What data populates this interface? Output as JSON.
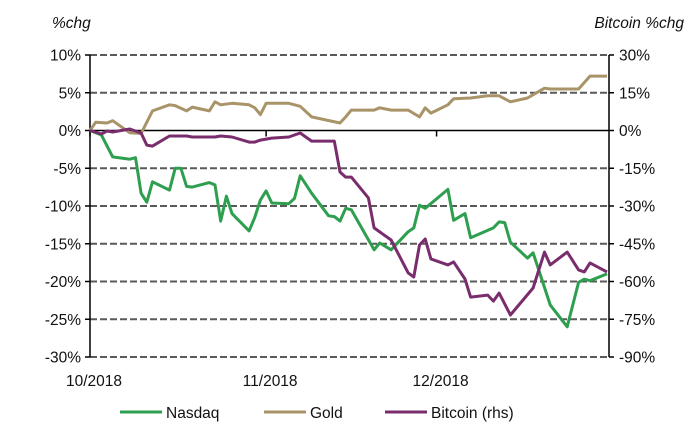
{
  "chart_data": {
    "type": "line",
    "title": "",
    "ylabel_left": "%chg",
    "ylabel_right": "Bitcoin %chg",
    "xlim": [
      "2018-10-01",
      "2018-12-31"
    ],
    "ylim_left": [
      -30,
      10
    ],
    "ylim_right": [
      -90,
      30
    ],
    "yticks_left": [
      "10%",
      "5%",
      "0%",
      "-5%",
      "-10%",
      "-15%",
      "-20%",
      "-25%",
      "-30%"
    ],
    "yticks_right": [
      "30%",
      "15%",
      "0%",
      "-15%",
      "-30%",
      "-45%",
      "-60%",
      "-75%",
      "-90%"
    ],
    "xticks": [
      {
        "date": "2018-10-01",
        "label": "10/2018"
      },
      {
        "date": "2018-11-01",
        "label": "11/2018"
      },
      {
        "date": "2018-12-01",
        "label": "12/2018"
      }
    ],
    "grid": "horizontal dashed",
    "legend_position": "bottom",
    "series": [
      {
        "name": "Nasdaq",
        "axis": "left",
        "color": "#2e9e4f",
        "points": [
          [
            "2018-10-01",
            0
          ],
          [
            "2018-10-03",
            -0.6
          ],
          [
            "2018-10-05",
            -3.5
          ],
          [
            "2018-10-08",
            -3.8
          ],
          [
            "2018-10-09",
            -3.6
          ],
          [
            "2018-10-10",
            -8.3
          ],
          [
            "2018-10-11",
            -9.5
          ],
          [
            "2018-10-12",
            -6.8
          ],
          [
            "2018-10-15",
            -7.9
          ],
          [
            "2018-10-16",
            -5.0
          ],
          [
            "2018-10-17",
            -5.0
          ],
          [
            "2018-10-18",
            -7.4
          ],
          [
            "2018-10-19",
            -7.5
          ],
          [
            "2018-10-22",
            -6.9
          ],
          [
            "2018-10-23",
            -7.2
          ],
          [
            "2018-10-24",
            -12.0
          ],
          [
            "2018-10-25",
            -8.7
          ],
          [
            "2018-10-26",
            -11.0
          ],
          [
            "2018-10-29",
            -13.3
          ],
          [
            "2018-10-30",
            -11.5
          ],
          [
            "2018-10-31",
            -9.2
          ],
          [
            "2018-11-01",
            -8.0
          ],
          [
            "2018-11-02",
            -9.6
          ],
          [
            "2018-11-05",
            -9.7
          ],
          [
            "2018-11-06",
            -9.0
          ],
          [
            "2018-11-07",
            -6.0
          ],
          [
            "2018-11-09",
            -8.3
          ],
          [
            "2018-11-12",
            -11.3
          ],
          [
            "2018-11-13",
            -11.4
          ],
          [
            "2018-11-14",
            -12.0
          ],
          [
            "2018-11-15",
            -10.3
          ],
          [
            "2018-11-16",
            -10.5
          ],
          [
            "2018-11-20",
            -15.8
          ],
          [
            "2018-11-21",
            -14.9
          ],
          [
            "2018-11-23",
            -15.8
          ],
          [
            "2018-11-26",
            -13.4
          ],
          [
            "2018-11-27",
            -12.9
          ],
          [
            "2018-11-28",
            -9.9
          ],
          [
            "2018-11-29",
            -10.3
          ],
          [
            "2018-12-03",
            -7.8
          ],
          [
            "2018-12-04",
            -11.9
          ],
          [
            "2018-12-06",
            -11.0
          ],
          [
            "2018-12-07",
            -14.2
          ],
          [
            "2018-12-11",
            -12.9
          ],
          [
            "2018-12-12",
            -12.1
          ],
          [
            "2018-12-13",
            -12.2
          ],
          [
            "2018-12-14",
            -14.8
          ],
          [
            "2018-12-17",
            -16.9
          ],
          [
            "2018-12-18",
            -16.2
          ],
          [
            "2018-12-21",
            -23.1
          ],
          [
            "2018-12-24",
            -26.0
          ],
          [
            "2018-12-26",
            -20.1
          ],
          [
            "2018-12-27",
            -19.7
          ],
          [
            "2018-12-28",
            -19.9
          ],
          [
            "2018-12-31",
            -19.0
          ]
        ]
      },
      {
        "name": "Gold",
        "axis": "left",
        "color": "#a89468",
        "points": [
          [
            "2018-10-01",
            0
          ],
          [
            "2018-10-02",
            1.1
          ],
          [
            "2018-10-04",
            1.0
          ],
          [
            "2018-10-05",
            1.3
          ],
          [
            "2018-10-08",
            -0.3
          ],
          [
            "2018-10-10",
            -0.4
          ],
          [
            "2018-10-12",
            2.6
          ],
          [
            "2018-10-15",
            3.4
          ],
          [
            "2018-10-16",
            3.3
          ],
          [
            "2018-10-18",
            2.6
          ],
          [
            "2018-10-19",
            3.1
          ],
          [
            "2018-10-22",
            2.6
          ],
          [
            "2018-10-23",
            3.8
          ],
          [
            "2018-10-24",
            3.4
          ],
          [
            "2018-10-26",
            3.6
          ],
          [
            "2018-10-29",
            3.4
          ],
          [
            "2018-10-30",
            3.0
          ],
          [
            "2018-10-31",
            2.1
          ],
          [
            "2018-11-01",
            3.6
          ],
          [
            "2018-11-05",
            3.6
          ],
          [
            "2018-11-07",
            3.2
          ],
          [
            "2018-11-09",
            1.8
          ],
          [
            "2018-11-14",
            1.0
          ],
          [
            "2018-11-15",
            1.8
          ],
          [
            "2018-11-16",
            2.7
          ],
          [
            "2018-11-20",
            2.7
          ],
          [
            "2018-11-21",
            3.0
          ],
          [
            "2018-11-23",
            2.7
          ],
          [
            "2018-11-26",
            2.7
          ],
          [
            "2018-11-28",
            1.8
          ],
          [
            "2018-11-29",
            3.0
          ],
          [
            "2018-11-30",
            2.3
          ],
          [
            "2018-12-03",
            3.4
          ],
          [
            "2018-12-04",
            4.2
          ],
          [
            "2018-12-07",
            4.3
          ],
          [
            "2018-12-10",
            4.6
          ],
          [
            "2018-12-12",
            4.6
          ],
          [
            "2018-12-14",
            3.8
          ],
          [
            "2018-12-17",
            4.3
          ],
          [
            "2018-12-20",
            5.6
          ],
          [
            "2018-12-21",
            5.5
          ],
          [
            "2018-12-26",
            5.5
          ],
          [
            "2018-12-28",
            7.2
          ],
          [
            "2018-12-31",
            7.2
          ]
        ]
      },
      {
        "name": "Bitcoin (rhs)",
        "axis": "right",
        "color": "#7a2d6d",
        "points": [
          [
            "2018-10-01",
            0
          ],
          [
            "2018-10-03",
            -1.4
          ],
          [
            "2018-10-04",
            -0.2
          ],
          [
            "2018-10-05",
            -0.6
          ],
          [
            "2018-10-08",
            0.6
          ],
          [
            "2018-10-10",
            -1.0
          ],
          [
            "2018-10-11",
            -5.8
          ],
          [
            "2018-10-12",
            -6.2
          ],
          [
            "2018-10-15",
            -2.2
          ],
          [
            "2018-10-18",
            -2.2
          ],
          [
            "2018-10-19",
            -2.6
          ],
          [
            "2018-10-23",
            -2.6
          ],
          [
            "2018-10-24",
            -2.2
          ],
          [
            "2018-10-26",
            -2.6
          ],
          [
            "2018-10-29",
            -4.6
          ],
          [
            "2018-10-30",
            -4.6
          ],
          [
            "2018-10-31",
            -3.8
          ],
          [
            "2018-11-02",
            -3.0
          ],
          [
            "2018-11-05",
            -2.6
          ],
          [
            "2018-11-07",
            -1.0
          ],
          [
            "2018-11-09",
            -4.2
          ],
          [
            "2018-11-13",
            -4.2
          ],
          [
            "2018-11-14",
            -16.5
          ],
          [
            "2018-11-15",
            -18.5
          ],
          [
            "2018-11-16",
            -18.5
          ],
          [
            "2018-11-19",
            -26.8
          ],
          [
            "2018-11-20",
            -38.7
          ],
          [
            "2018-11-23",
            -43.5
          ],
          [
            "2018-11-26",
            -56.6
          ],
          [
            "2018-11-27",
            -58.2
          ],
          [
            "2018-11-28",
            -45.5
          ],
          [
            "2018-11-29",
            -43.1
          ],
          [
            "2018-11-30",
            -51.0
          ],
          [
            "2018-12-03",
            -53.4
          ],
          [
            "2018-12-04",
            -52.2
          ],
          [
            "2018-12-06",
            -59.0
          ],
          [
            "2018-12-07",
            -66.2
          ],
          [
            "2018-12-10",
            -65.4
          ],
          [
            "2018-12-11",
            -67.8
          ],
          [
            "2018-12-12",
            -64.6
          ],
          [
            "2018-12-14",
            -73.3
          ],
          [
            "2018-12-18",
            -62.6
          ],
          [
            "2018-12-20",
            -48.3
          ],
          [
            "2018-12-21",
            -53.4
          ],
          [
            "2018-12-24",
            -48.3
          ],
          [
            "2018-12-26",
            -55.4
          ],
          [
            "2018-12-27",
            -56.2
          ],
          [
            "2018-12-28",
            -52.6
          ],
          [
            "2018-12-31",
            -56.2
          ]
        ]
      }
    ]
  }
}
